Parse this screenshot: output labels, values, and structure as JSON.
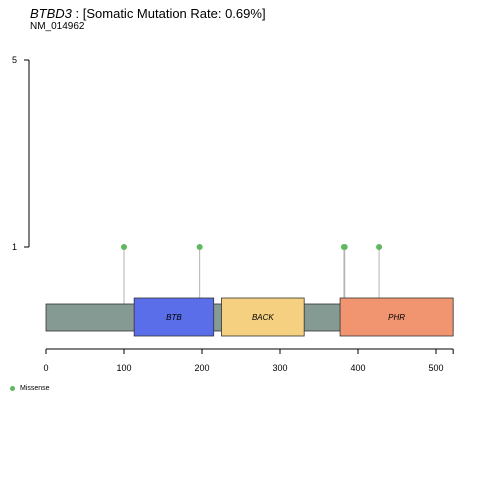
{
  "title": {
    "gene": "BTBD3",
    "rest": " : [Somatic Mutation Rate: 0.69%]"
  },
  "subtitle": "NM_014962",
  "chart_data": {
    "type": "lollipop",
    "protein_length": 522,
    "x_ticks": [
      0,
      100,
      200,
      300,
      400,
      500
    ],
    "y_ticks": [
      1,
      5
    ],
    "ylim": [
      0,
      5
    ],
    "domains": [
      {
        "name": "BTB",
        "start": 113,
        "end": 215,
        "color": "#5b6ee9"
      },
      {
        "name": "BACK",
        "start": 225,
        "end": 331,
        "color": "#f5d080"
      },
      {
        "name": "PHR",
        "start": 377,
        "end": 522,
        "color": "#f09570"
      }
    ],
    "mutations": [
      {
        "position": 100,
        "count": 1,
        "type": "Missense"
      },
      {
        "position": 197,
        "count": 1,
        "type": "Missense"
      },
      {
        "position": 382,
        "count": 1,
        "type": "Missense"
      },
      {
        "position": 383,
        "count": 1,
        "type": "Missense"
      },
      {
        "position": 427,
        "count": 1,
        "type": "Missense"
      }
    ],
    "legend": [
      {
        "label": "Missense",
        "color": "#5fb85f"
      }
    ],
    "colors": {
      "backbone": "#869a94",
      "stem": "#b3b3b3",
      "missense": "#5fb85f"
    }
  }
}
